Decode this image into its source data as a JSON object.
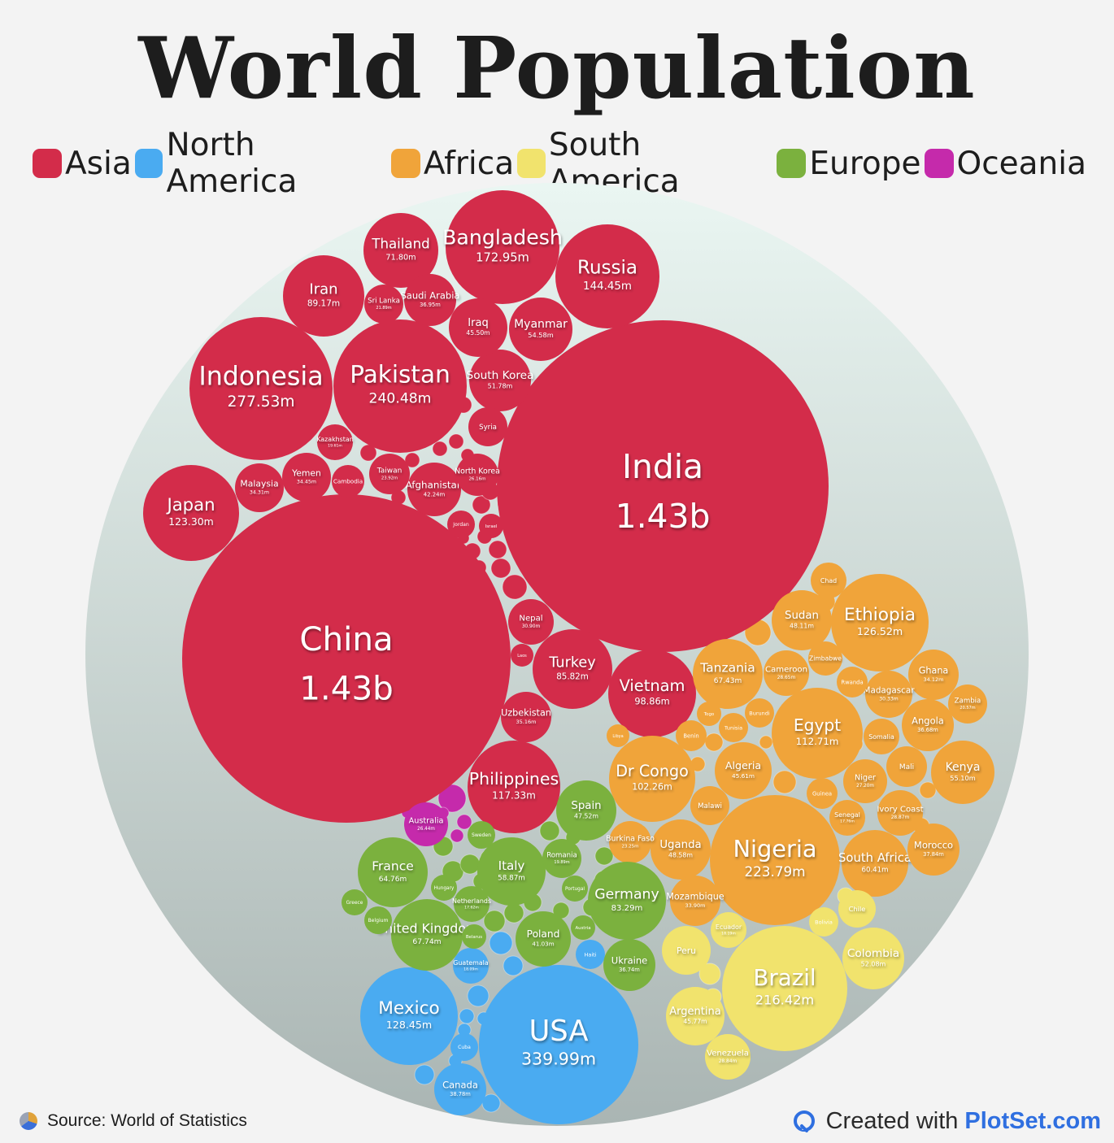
{
  "title": "World Population",
  "legend": [
    {
      "label": "Asia",
      "color": "#d32c4a"
    },
    {
      "label": "North America",
      "color": "#4aabf1"
    },
    {
      "label": "Africa",
      "color": "#f0a43a"
    },
    {
      "label": "South America",
      "color": "#f1e36d"
    },
    {
      "label": "Europe",
      "color": "#7bb13e"
    },
    {
      "label": "Oceania",
      "color": "#c52aab"
    }
  ],
  "footer": {
    "source": "Source: World of Statistics",
    "created_prefix": "Created with",
    "created_brand": "PlotSet.com"
  },
  "chart_data": {
    "type": "bubble",
    "title": "World Population",
    "unit": "population",
    "series": [
      {
        "name": "Asia",
        "color": "#d32c4a",
        "points": [
          {
            "label": "India",
            "value_text": "1.43b",
            "value": 1430
          },
          {
            "label": "China",
            "value_text": "1.43b",
            "value": 1430
          },
          {
            "label": "Indonesia",
            "value_text": "277.53m",
            "value": 277.53
          },
          {
            "label": "Pakistan",
            "value_text": "240.48m",
            "value": 240.48
          },
          {
            "label": "Bangladesh",
            "value_text": "172.95m",
            "value": 172.95
          },
          {
            "label": "Russia",
            "value_text": "144.45m",
            "value": 144.45
          },
          {
            "label": "Japan",
            "value_text": "123.30m",
            "value": 123.3
          },
          {
            "label": "Philippines",
            "value_text": "117.33m",
            "value": 117.33
          },
          {
            "label": "Vietnam",
            "value_text": "98.86m",
            "value": 98.86
          },
          {
            "label": "Iran",
            "value_text": "89.17m",
            "value": 89.17
          },
          {
            "label": "Turkey",
            "value_text": "85.82m",
            "value": 85.82
          },
          {
            "label": "Thailand",
            "value_text": "71.80m",
            "value": 71.8
          },
          {
            "label": "Myanmar",
            "value_text": "54.58m",
            "value": 54.58
          },
          {
            "label": "South Korea",
            "value_text": "51.78m",
            "value": 51.78
          },
          {
            "label": "Iraq",
            "value_text": "45.50m",
            "value": 45.5
          },
          {
            "label": "Afghanistan",
            "value_text": "42.24m",
            "value": 42.24
          },
          {
            "label": "Saudi Arabia",
            "value_text": "36.95m",
            "value": 36.95
          },
          {
            "label": "Uzbekistan",
            "value_text": "35.16m",
            "value": 35.16
          },
          {
            "label": "Yemen",
            "value_text": "34.45m",
            "value": 34.45
          },
          {
            "label": "Malaysia",
            "value_text": "34.31m",
            "value": 34.31
          },
          {
            "label": "Nepal",
            "value_text": "30.90m",
            "value": 30.9
          },
          {
            "label": "North Korea",
            "value_text": "26.16m",
            "value": 26.16
          },
          {
            "label": "Syria",
            "value_text": "",
            "value": 23.2
          },
          {
            "label": "Taiwan",
            "value_text": "23.92m",
            "value": 23.92
          },
          {
            "label": "Sri Lanka",
            "value_text": "21.89m",
            "value": 21.89
          },
          {
            "label": "Kazakhstan",
            "value_text": "19.61m",
            "value": 19.61
          },
          {
            "label": "Cambodia",
            "value_text": "",
            "value": 16.9
          },
          {
            "label": "Jordan",
            "value_text": "",
            "value": 11.3
          },
          {
            "label": "Israel",
            "value_text": "",
            "value": 9.2
          },
          {
            "label": "Laos",
            "value_text": "",
            "value": 7.6
          }
        ]
      },
      {
        "name": "Africa",
        "color": "#f0a43a",
        "points": [
          {
            "label": "Nigeria",
            "value_text": "223.79m",
            "value": 223.79
          },
          {
            "label": "Ethiopia",
            "value_text": "126.52m",
            "value": 126.52
          },
          {
            "label": "Egypt",
            "value_text": "112.71m",
            "value": 112.71
          },
          {
            "label": "Dr Congo",
            "value_text": "102.26m",
            "value": 102.26
          },
          {
            "label": "Tanzania",
            "value_text": "67.43m",
            "value": 67.43
          },
          {
            "label": "South Africa",
            "value_text": "60.41m",
            "value": 60.41
          },
          {
            "label": "Kenya",
            "value_text": "55.10m",
            "value": 55.1
          },
          {
            "label": "Uganda",
            "value_text": "48.58m",
            "value": 48.58
          },
          {
            "label": "Sudan",
            "value_text": "48.11m",
            "value": 48.11
          },
          {
            "label": "Algeria",
            "value_text": "45.61m",
            "value": 45.61
          },
          {
            "label": "Morocco",
            "value_text": "37.84m",
            "value": 37.84
          },
          {
            "label": "Angola",
            "value_text": "36.68m",
            "value": 36.68
          },
          {
            "label": "Ghana",
            "value_text": "34.12m",
            "value": 34.12
          },
          {
            "label": "Mozambique",
            "value_text": "33.90m",
            "value": 33.9
          },
          {
            "label": "Madagascar",
            "value_text": "30.33m",
            "value": 30.33
          },
          {
            "label": "Cameroon",
            "value_text": "28.65m",
            "value": 28.65
          },
          {
            "label": "Ivory Coast",
            "value_text": "28.87m",
            "value": 28.87
          },
          {
            "label": "Niger",
            "value_text": "27.20m",
            "value": 27.2
          },
          {
            "label": "Burkina Faso",
            "value_text": "23.25m",
            "value": 23.25
          },
          {
            "label": "Mali",
            "value_text": "",
            "value": 23.3
          },
          {
            "label": "Malawi",
            "value_text": "",
            "value": 21.1
          },
          {
            "label": "Zambia",
            "value_text": "20.57m",
            "value": 20.57
          },
          {
            "label": "Chad",
            "value_text": "",
            "value": 18.3
          },
          {
            "label": "Somalia",
            "value_text": "",
            "value": 18.1
          },
          {
            "label": "Senegal",
            "value_text": "17.76m",
            "value": 17.76
          },
          {
            "label": "Zimbabwe",
            "value_text": "",
            "value": 16.7
          },
          {
            "label": "Guinea",
            "value_text": "",
            "value": 14.2
          },
          {
            "label": "Rwanda",
            "value_text": "",
            "value": 14.1
          },
          {
            "label": "Benin",
            "value_text": "",
            "value": 13.7
          },
          {
            "label": "Burundi",
            "value_text": "",
            "value": 13.2
          },
          {
            "label": "Tunisia",
            "value_text": "",
            "value": 12.5
          },
          {
            "label": "Togo",
            "value_text": "",
            "value": 9.1
          },
          {
            "label": "Libya",
            "value_text": "",
            "value": 6.9
          }
        ]
      },
      {
        "name": "North America",
        "color": "#4aabf1",
        "points": [
          {
            "label": "USA",
            "value_text": "339.99m",
            "value": 339.99
          },
          {
            "label": "Mexico",
            "value_text": "128.45m",
            "value": 128.45
          },
          {
            "label": "Canada",
            "value_text": "38.78m",
            "value": 38.78
          },
          {
            "label": "Guatemala",
            "value_text": "18.09m",
            "value": 18.09
          },
          {
            "label": "Haiti",
            "value_text": "",
            "value": 11.7
          },
          {
            "label": "Cuba",
            "value_text": "",
            "value": 11.2
          }
        ]
      },
      {
        "name": "South America",
        "color": "#f1e36d",
        "points": [
          {
            "label": "Brazil",
            "value_text": "216.42m",
            "value": 216.42
          },
          {
            "label": "Colombia",
            "value_text": "52.08m",
            "value": 52.08
          },
          {
            "label": "Argentina",
            "value_text": "45.77m",
            "value": 45.77
          },
          {
            "label": "Peru",
            "value_text": "",
            "value": 34.4
          },
          {
            "label": "Venezuela",
            "value_text": "28.84m",
            "value": 28.84
          },
          {
            "label": "Chile",
            "value_text": "",
            "value": 19.6
          },
          {
            "label": "Ecuador",
            "value_text": "18.19m",
            "value": 18.19
          },
          {
            "label": "Bolivia",
            "value_text": "",
            "value": 12.4
          }
        ]
      },
      {
        "name": "Europe",
        "color": "#7bb13e",
        "points": [
          {
            "label": "Germany",
            "value_text": "83.29m",
            "value": 83.29
          },
          {
            "label": "United Kingdom",
            "value_text": "67.74m",
            "value": 67.74
          },
          {
            "label": "France",
            "value_text": "64.76m",
            "value": 64.76
          },
          {
            "label": "Italy",
            "value_text": "58.87m",
            "value": 58.87
          },
          {
            "label": "Spain",
            "value_text": "47.52m",
            "value": 47.52
          },
          {
            "label": "Poland",
            "value_text": "41.03m",
            "value": 41.03
          },
          {
            "label": "Ukraine",
            "value_text": "36.74m",
            "value": 36.74
          },
          {
            "label": "Romania",
            "value_text": "19.89m",
            "value": 19.89
          },
          {
            "label": "Netherlands",
            "value_text": "17.62m",
            "value": 17.62
          },
          {
            "label": "Belgium",
            "value_text": "",
            "value": 11.7
          },
          {
            "label": "Sweden",
            "value_text": "",
            "value": 10.6
          },
          {
            "label": "Greece",
            "value_text": "",
            "value": 10.3
          },
          {
            "label": "Portugal",
            "value_text": "",
            "value": 10.2
          },
          {
            "label": "Hungary",
            "value_text": "",
            "value": 10.1
          },
          {
            "label": "Austria",
            "value_text": "",
            "value": 9.0
          },
          {
            "label": "Belarus",
            "value_text": "",
            "value": 9.4
          }
        ]
      },
      {
        "name": "Oceania",
        "color": "#c52aab",
        "points": [
          {
            "label": "Australia",
            "value_text": "26.44m",
            "value": 26.44
          }
        ]
      }
    ]
  }
}
